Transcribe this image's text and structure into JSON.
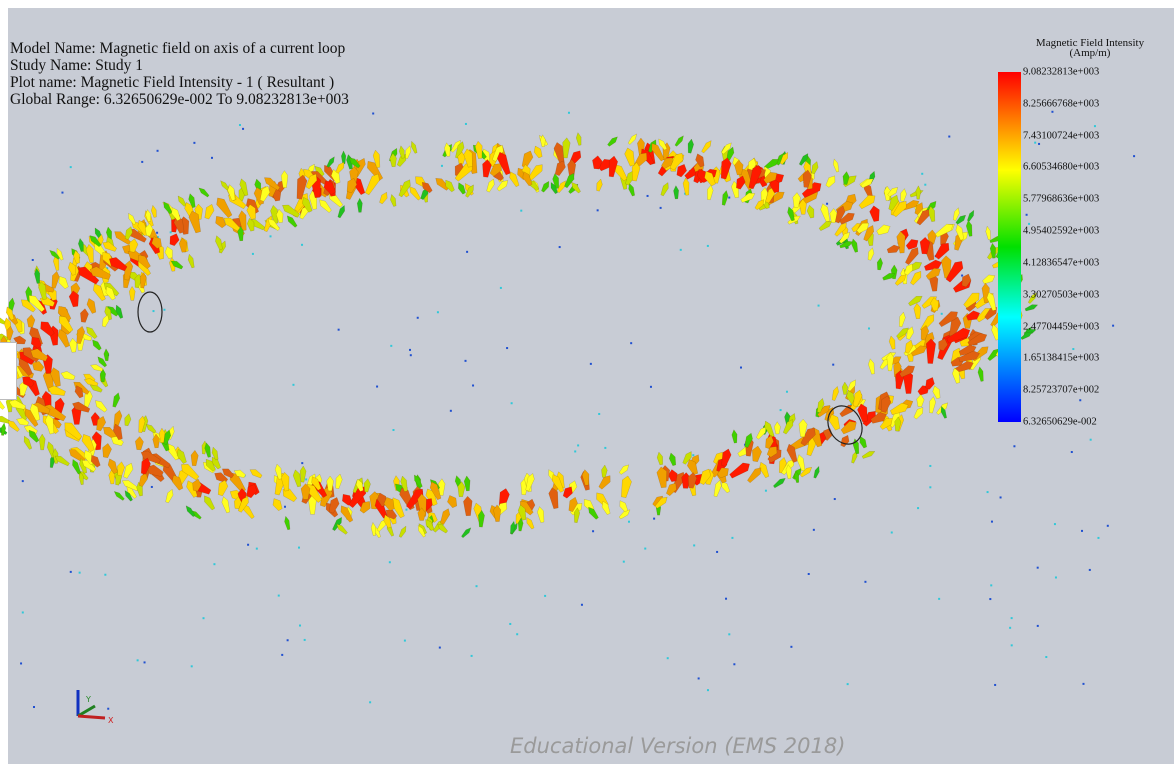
{
  "info": {
    "model": "Model Name: Magnetic field on axis of a current loop",
    "study": "Study Name: Study 1",
    "plot": "Plot name: Magnetic Field Intensity - 1 ( Resultant )",
    "range": "Global Range: 6.32650629e-002 To 9.08232813e+003"
  },
  "legend": {
    "title": "Magnetic Field Intensity",
    "unit": "(Amp/m)",
    "labels": [
      "9.08232813e+003",
      "8.25666768e+003",
      "7.43100724e+003",
      "6.60534680e+003",
      "5.77968636e+003",
      "4.95402592e+003",
      "4.12836547e+003",
      "3.30270503e+003",
      "2.47704459e+003",
      "1.65138415e+003",
      "8.25723707e+002",
      "6.32650629e-002"
    ]
  },
  "triad": {
    "x": "X",
    "y": "Y"
  },
  "watermark": "Educational Version (EMS 2018)"
}
